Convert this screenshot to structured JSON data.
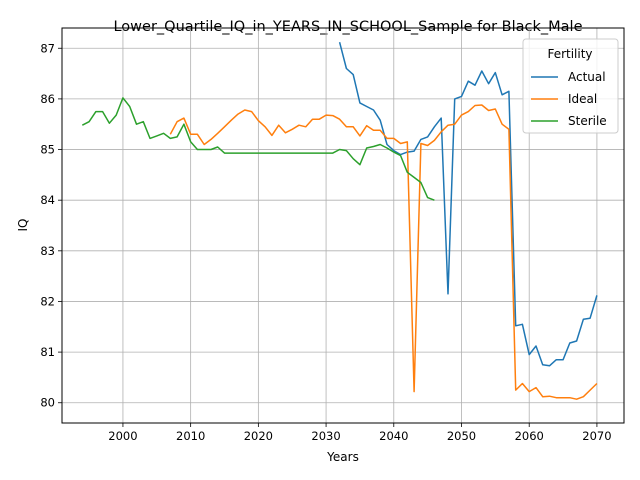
{
  "chart_data": {
    "type": "line",
    "title": "Lower_Quartile_IQ_in_YEARS_IN_SCHOOL_Sample for Black_Male",
    "xlabel": "Years",
    "ylabel": "IQ",
    "xlim": [
      1991,
      2074
    ],
    "ylim": [
      79.6,
      87.4
    ],
    "x_ticks": [
      2000,
      2010,
      2020,
      2030,
      2040,
      2050,
      2060,
      2070
    ],
    "y_ticks": [
      80,
      81,
      82,
      83,
      84,
      85,
      86,
      87
    ],
    "grid": true,
    "legend": {
      "title": "Fertility",
      "position": "top-right"
    },
    "series": [
      {
        "name": "Actual",
        "color": "#1f77b4",
        "x": [
          2032,
          2033,
          2034,
          2035,
          2036,
          2037,
          2038,
          2039,
          2040,
          2041,
          2042,
          2043,
          2044,
          2045,
          2046,
          2047,
          2048,
          2049,
          2050,
          2051,
          2052,
          2053,
          2054,
          2055,
          2056,
          2057,
          2058,
          2059,
          2060,
          2061,
          2062,
          2063,
          2064,
          2065,
          2066,
          2067,
          2068,
          2069,
          2070
        ],
        "y": [
          87.12,
          86.6,
          86.48,
          85.92,
          85.85,
          85.78,
          85.58,
          85.1,
          84.98,
          84.9,
          84.95,
          84.97,
          85.2,
          85.25,
          85.45,
          85.62,
          82.15,
          86.0,
          86.05,
          86.35,
          86.27,
          86.55,
          86.3,
          86.52,
          86.08,
          86.15,
          81.52,
          81.55,
          80.95,
          81.12,
          80.75,
          80.73,
          80.85,
          80.85,
          81.18,
          81.22,
          81.65,
          81.67,
          82.12
        ]
      },
      {
        "name": "Ideal",
        "color": "#ff7f0e",
        "x": [
          2007,
          2008,
          2009,
          2010,
          2011,
          2012,
          2013,
          2014,
          2015,
          2016,
          2017,
          2018,
          2019,
          2020,
          2021,
          2022,
          2023,
          2024,
          2025,
          2026,
          2027,
          2028,
          2029,
          2030,
          2031,
          2032,
          2033,
          2034,
          2035,
          2036,
          2037,
          2038,
          2039,
          2040,
          2041,
          2042,
          2043,
          2044,
          2045,
          2046,
          2047,
          2048,
          2049,
          2050,
          2051,
          2052,
          2053,
          2054,
          2055,
          2056,
          2057,
          2058,
          2059,
          2060,
          2061,
          2062,
          2063,
          2064,
          2065,
          2066,
          2067,
          2068,
          2069,
          2070
        ],
        "y": [
          85.3,
          85.55,
          85.62,
          85.3,
          85.3,
          85.1,
          85.2,
          85.32,
          85.45,
          85.58,
          85.7,
          85.78,
          85.75,
          85.57,
          85.45,
          85.28,
          85.48,
          85.33,
          85.4,
          85.48,
          85.45,
          85.6,
          85.6,
          85.68,
          85.67,
          85.6,
          85.45,
          85.45,
          85.27,
          85.47,
          85.38,
          85.38,
          85.22,
          85.22,
          85.12,
          85.15,
          80.22,
          85.12,
          85.08,
          85.18,
          85.35,
          85.48,
          85.5,
          85.68,
          85.75,
          85.87,
          85.88,
          85.77,
          85.8,
          85.5,
          85.4,
          80.25,
          80.38,
          80.22,
          80.3,
          80.12,
          80.13,
          80.1,
          80.1,
          80.1,
          80.07,
          80.12,
          80.25,
          80.38
        ]
      },
      {
        "name": "Sterile",
        "color": "#2ca02c",
        "x": [
          1994,
          1995,
          1996,
          1997,
          1998,
          1999,
          2000,
          2001,
          2002,
          2003,
          2004,
          2005,
          2006,
          2007,
          2008,
          2009,
          2010,
          2011,
          2012,
          2013,
          2014,
          2015,
          2016,
          2017,
          2018,
          2019,
          2020,
          2021,
          2022,
          2023,
          2024,
          2025,
          2026,
          2027,
          2028,
          2029,
          2030,
          2031,
          2032,
          2033,
          2034,
          2035,
          2036,
          2037,
          2038,
          2039,
          2040,
          2041,
          2042,
          2043,
          2044,
          2045,
          2046
        ],
        "y": [
          85.48,
          85.55,
          85.75,
          85.75,
          85.52,
          85.68,
          86.02,
          85.85,
          85.5,
          85.55,
          85.22,
          85.27,
          85.32,
          85.22,
          85.25,
          85.5,
          85.15,
          85.0,
          85.0,
          85.0,
          85.05,
          84.93,
          84.93,
          84.93,
          84.93,
          84.93,
          84.93,
          84.93,
          84.93,
          84.93,
          84.93,
          84.93,
          84.93,
          84.93,
          84.93,
          84.93,
          84.93,
          84.93,
          85.0,
          84.98,
          84.82,
          84.7,
          85.03,
          85.06,
          85.1,
          85.03,
          84.95,
          84.88,
          84.55,
          84.45,
          84.35,
          84.05,
          84.0
        ]
      }
    ]
  }
}
